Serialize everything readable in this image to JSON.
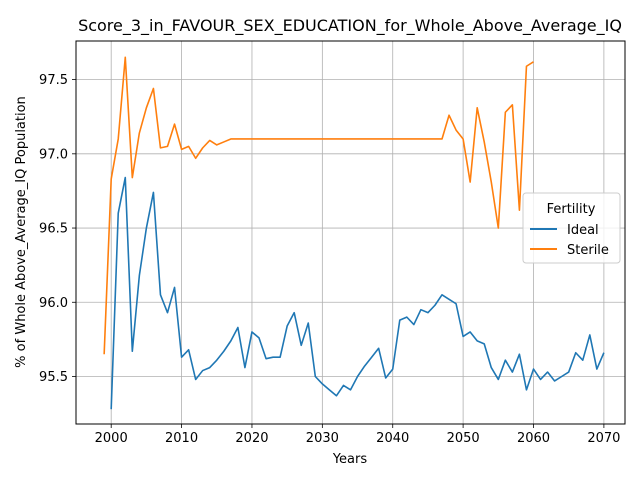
{
  "chart_data": {
    "type": "line",
    "title": "Score_3_in_FAVOUR_SEX_EDUCATION_for_Whole_Above_Average_IQ",
    "xlabel": "Years",
    "ylabel": "% of Whole Above_Average_IQ Population",
    "xlim": [
      1995,
      2073
    ],
    "ylim": [
      95.18,
      97.76
    ],
    "xticks": [
      2000,
      2010,
      2020,
      2030,
      2040,
      2050,
      2060,
      2070
    ],
    "yticks": [
      95.5,
      96.0,
      96.5,
      97.0,
      97.5
    ],
    "ytick_labels": [
      "95.5",
      "96.0",
      "96.5",
      "97.0",
      "97.5"
    ],
    "grid": true,
    "legend": {
      "title": "Fertility",
      "placement": "center-right"
    },
    "series": [
      {
        "name": "Ideal",
        "color": "#1f77b4",
        "x": [
          2000,
          2001,
          2002,
          2003,
          2004,
          2005,
          2006,
          2007,
          2008,
          2009,
          2010,
          2011,
          2012,
          2013,
          2014,
          2015,
          2016,
          2017,
          2018,
          2019,
          2020,
          2021,
          2022,
          2023,
          2024,
          2025,
          2026,
          2027,
          2028,
          2029,
          2030,
          2031,
          2032,
          2033,
          2034,
          2035,
          2036,
          2037,
          2038,
          2039,
          2040,
          2041,
          2042,
          2043,
          2044,
          2045,
          2046,
          2047,
          2048,
          2049,
          2050,
          2051,
          2052,
          2053,
          2054,
          2055,
          2056,
          2057,
          2058,
          2059,
          2060,
          2061,
          2062,
          2063,
          2064,
          2065,
          2066,
          2067,
          2068,
          2069,
          2070
        ],
        "y": [
          95.28,
          96.6,
          96.84,
          95.67,
          96.18,
          96.5,
          96.74,
          96.05,
          95.93,
          96.1,
          95.63,
          95.68,
          95.48,
          95.54,
          95.56,
          95.61,
          95.67,
          95.74,
          95.83,
          95.56,
          95.8,
          95.76,
          95.62,
          95.63,
          95.63,
          95.84,
          95.93,
          95.71,
          95.86,
          95.5,
          95.45,
          95.41,
          95.37,
          95.44,
          95.41,
          95.5,
          95.57,
          95.63,
          95.69,
          95.49,
          95.55,
          95.88,
          95.9,
          95.85,
          95.95,
          95.93,
          95.98,
          96.05,
          96.02,
          95.99,
          95.77,
          95.8,
          95.74,
          95.72,
          95.56,
          95.48,
          95.61,
          95.53,
          95.65,
          95.41,
          95.55,
          95.48,
          95.53,
          95.47,
          95.5,
          95.53,
          95.66,
          95.61,
          95.78,
          95.55,
          95.66
        ]
      },
      {
        "name": "Sterile",
        "color": "#ff7f0e",
        "x": [
          1999,
          2000,
          2001,
          2002,
          2003,
          2004,
          2005,
          2006,
          2007,
          2008,
          2009,
          2010,
          2011,
          2012,
          2013,
          2014,
          2015,
          2016,
          2017,
          2018,
          2019,
          2020,
          2021,
          2022,
          2023,
          2024,
          2025,
          2026,
          2027,
          2028,
          2029,
          2030,
          2031,
          2032,
          2033,
          2034,
          2035,
          2036,
          2037,
          2038,
          2039,
          2040,
          2041,
          2042,
          2043,
          2044,
          2045,
          2046,
          2047,
          2048,
          2049,
          2050,
          2051,
          2052,
          2053,
          2054,
          2055,
          2056,
          2057,
          2058,
          2059,
          2060
        ],
        "y": [
          95.65,
          96.83,
          97.1,
          97.65,
          96.84,
          97.14,
          97.31,
          97.44,
          97.04,
          97.05,
          97.2,
          97.03,
          97.05,
          96.97,
          97.04,
          97.09,
          97.06,
          97.08,
          97.1,
          97.1,
          97.1,
          97.1,
          97.1,
          97.1,
          97.1,
          97.1,
          97.1,
          97.1,
          97.1,
          97.1,
          97.1,
          97.1,
          97.1,
          97.1,
          97.1,
          97.1,
          97.1,
          97.1,
          97.1,
          97.1,
          97.1,
          97.1,
          97.1,
          97.1,
          97.1,
          97.1,
          97.1,
          97.1,
          97.1,
          97.26,
          97.16,
          97.1,
          96.81,
          97.31,
          97.08,
          96.81,
          96.5,
          97.28,
          97.33,
          96.62,
          97.59,
          97.62
        ]
      }
    ]
  }
}
